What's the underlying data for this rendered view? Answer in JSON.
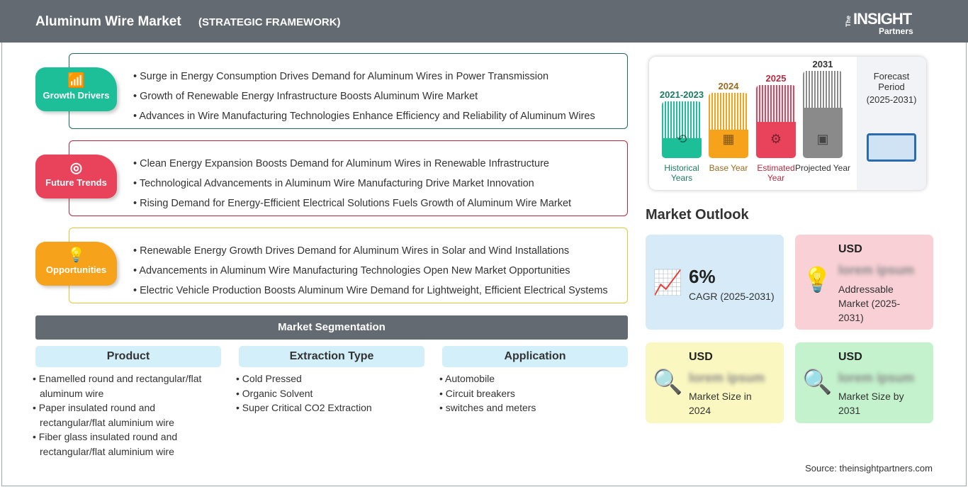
{
  "header": {
    "title": "Aluminum Wire Market",
    "subtitle": "(STRATEGIC FRAMEWORK)",
    "logo": "The INSIGHT Partners"
  },
  "sections": [
    {
      "label": "Growth Drivers",
      "icon": "growth-chart-icon",
      "color": "#1dbf98",
      "border": "#1c6e5c",
      "items": [
        "Surge in Energy Consumption Drives Demand for Aluminum Wires in Power Transmission",
        "Growth of Renewable Energy Infrastructure Boosts Aluminum Wire Market",
        "Advances in Wire Manufacturing Technologies Enhance Efficiency and Reliability of Aluminum Wires"
      ]
    },
    {
      "label": "Future Trends",
      "icon": "target-icon",
      "color": "#e8435a",
      "border": "#b52a40",
      "items": [
        "Clean Energy Expansion Boosts Demand for Aluminum Wires in Renewable Infrastructure",
        "Technological Advancements in Aluminum Wire Manufacturing Drive Market Innovation",
        "Rising Demand for Energy-Efficient Electrical Solutions Fuels Growth of Aluminum Wire Market"
      ]
    },
    {
      "label": "Opportunities",
      "icon": "lightbulb-hand-icon",
      "color": "#f7a21b",
      "border": "#e3c53a",
      "items": [
        "Renewable Energy Growth Drives Demand for Aluminum Wires in Solar and Wind Installations",
        "Advancements in Aluminum Wire Manufacturing Technologies Open New Market Opportunities",
        "Electric Vehicle Production Boosts Aluminum Wire Demand for Lightweight, Efficient Electrical Systems"
      ]
    }
  ],
  "segmentation": {
    "title": "Market Segmentation",
    "columns": [
      {
        "header": "Product",
        "items": [
          "Enamelled round and rectangular/flat aluminum wire",
          "Paper insulated round and rectangular/flat aluminium wire",
          "Fiber glass insulated round and rectangular/flat aluminium wire"
        ]
      },
      {
        "header": "Extraction Type",
        "items": [
          "Cold Pressed",
          "Organic Solvent",
          "Super Critical CO2 Extraction"
        ]
      },
      {
        "header": "Application",
        "items": [
          "Automobile",
          "Circuit breakers",
          "switches and meters"
        ]
      }
    ]
  },
  "timeline": {
    "bars": [
      {
        "year": "2021-2023",
        "label": "Historical Years",
        "color": "#1dbf98",
        "text": "#1c7a62",
        "icon": "history-clock-icon"
      },
      {
        "year": "2024",
        "label": "Base Year",
        "color": "#f7a21b",
        "text": "#9a6a20",
        "icon": "calendar-icon"
      },
      {
        "year": "2025",
        "label": "Estimated Year",
        "color": "#e8435a",
        "text": "#b52a40",
        "icon": "estimate-screen-icon"
      },
      {
        "year": "2031",
        "label": "Projected Year",
        "color": "#8a8a8a",
        "text": "#333333",
        "icon": "projection-board-icon"
      }
    ],
    "forecast_title": "Forecast Period",
    "forecast_range": "(2025-2031)"
  },
  "outlook": {
    "title": "Market Outlook",
    "cards": [
      {
        "value": "6%",
        "label": "CAGR (2025-2031)",
        "bg": "#d6ebf7",
        "icon": "growth-chart-icon"
      },
      {
        "currency": "USD",
        "value": "lorem ipsum",
        "label": "Addressable Market (2025-2031)",
        "bg": "#f8d0d6",
        "icon": "dollar-bulb-icon"
      },
      {
        "currency": "USD",
        "value": "lorem ipsum",
        "label": "Market Size in 2024",
        "bg": "#fbf7c0",
        "icon": "magnifier-chart-icon"
      },
      {
        "currency": "USD",
        "value": "lorem ipsum",
        "label": "Market Size by 2031",
        "bg": "#c3f2cc",
        "icon": "magnifier-chart-icon"
      }
    ]
  },
  "source": "Source: theinsightpartners.com"
}
